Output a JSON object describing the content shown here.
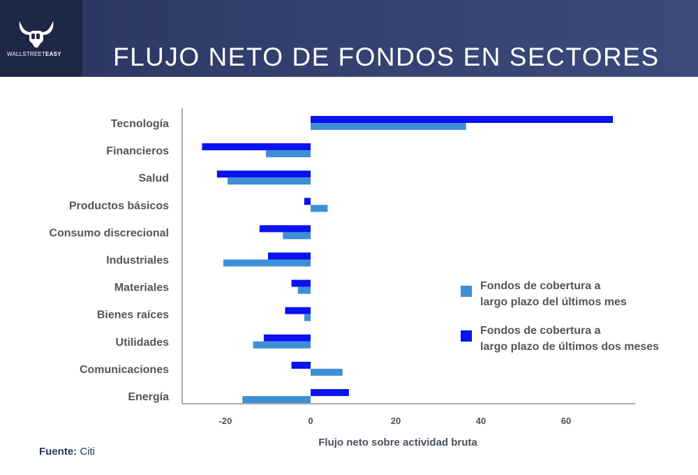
{
  "header": {
    "logo_text_light": "WALLSTREET",
    "logo_text_bold": "EASY",
    "title": "FLUJO NETO DE FONDOS EN SECTORES"
  },
  "colors": {
    "header_bg": "#2a3560",
    "series_month": "#3e8fd6",
    "series_two_months": "#0a12f0"
  },
  "chart_data": {
    "type": "bar",
    "orientation": "horizontal",
    "title": "FLUJO NETO DE FONDOS EN SECTORES",
    "xlabel": "Flujo neto sobre actividad bruta",
    "ylabel": "",
    "xlim": [
      -30,
      78
    ],
    "xticks": [
      -20,
      0,
      20,
      40,
      60
    ],
    "legend_position": "right",
    "categories": [
      "Tecnología",
      "Financieros",
      "Salud",
      "Productos básicos",
      "Consumo discrecional",
      "Industriales",
      "Materiales",
      "Bienes raíces",
      "Utilidades",
      "Comunicaciones",
      "Energía"
    ],
    "series": [
      {
        "name": "Fondos de cobertura a largo plazo de últimos dos meses",
        "legend_lines": [
          "Fondos de cobertura a",
          "largo plazo de últimos dos meses"
        ],
        "color": "#0a12f0",
        "values": [
          71,
          -25.5,
          -22,
          -1.5,
          -12,
          -10,
          -4.5,
          -6,
          -11,
          -4.5,
          9
        ]
      },
      {
        "name": "Fondos de cobertura a largo plazo del últimos mes",
        "legend_lines": [
          "Fondos de cobertura a",
          "largo plazo del últimos mes"
        ],
        "color": "#3e8fd6",
        "values": [
          36.5,
          -10.5,
          -19.5,
          4,
          -6.5,
          -20.5,
          -3,
          -1.5,
          -13.5,
          7.5,
          -16
        ]
      }
    ]
  },
  "source": {
    "label": "Fuente:",
    "value": "Citi"
  }
}
